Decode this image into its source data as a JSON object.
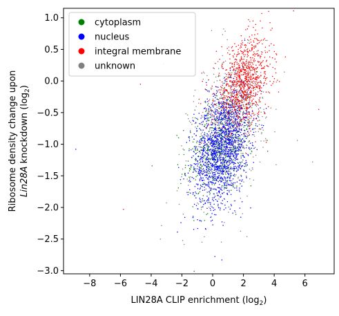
{
  "chart_data": {
    "type": "scatter",
    "title": "",
    "xlabel": "LIN28A CLIP enrichment (log",
    "xlabel_sub": "2",
    "xlabel_end": ")",
    "ylabel_line1": "Ribosome density change upon",
    "ylabel_line2_italic": "Lin28A",
    "ylabel_line2_rest": " knockdown (log",
    "ylabel_line2_sub": "2",
    "ylabel_line2_end": ")",
    "xlim": [
      -9.7,
      7.9
    ],
    "ylim": [
      -3.05,
      1.15
    ],
    "xticks": [
      -8,
      -6,
      -4,
      -2,
      0,
      2,
      4,
      6
    ],
    "xtick_labels": [
      "−8",
      "−6",
      "−4",
      "−2",
      "0",
      "2",
      "4",
      "6"
    ],
    "yticks": [
      -3.0,
      -2.5,
      -2.0,
      -1.5,
      -1.0,
      -0.5,
      0.0,
      0.5,
      1.0
    ],
    "ytick_labels": [
      "−3.0",
      "−2.5",
      "−2.0",
      "−1.5",
      "−1.0",
      "−0.5",
      "0.0",
      "0.5",
      "1.0"
    ],
    "grid": false,
    "legend_position": "top-left",
    "series": [
      {
        "name": "cytoplasm",
        "color": "#008000",
        "count": 450,
        "center": [
          0.5,
          -1.0
        ],
        "spread": [
          1.1,
          0.45
        ],
        "corr": 0.3
      },
      {
        "name": "nucleus",
        "color": "#0000ff",
        "count": 1700,
        "center": [
          0.6,
          -1.05
        ],
        "spread": [
          0.9,
          0.45
        ],
        "corr": 0.3
      },
      {
        "name": "integral membrane",
        "color": "#ff0000",
        "count": 1000,
        "center": [
          2.0,
          -0.05
        ],
        "spread": [
          0.9,
          0.35
        ],
        "corr": 0.35
      },
      {
        "name": "unknown",
        "color": "#808080",
        "count": 700,
        "center": [
          1.0,
          -0.7
        ],
        "spread": [
          1.2,
          0.6
        ],
        "corr": 0.35
      }
    ],
    "outliers": [
      {
        "series": "nucleus",
        "x": -8.9,
        "y": -1.08
      },
      {
        "series": "integral membrane",
        "x": 6.9,
        "y": -0.45
      },
      {
        "series": "unknown",
        "x": 6.5,
        "y": -1.28
      },
      {
        "series": "integral membrane",
        "x": -5.8,
        "y": -2.03
      },
      {
        "series": "unknown",
        "x": -3.4,
        "y": -2.5
      },
      {
        "series": "unknown",
        "x": -3.2,
        "y": 0.27
      },
      {
        "series": "unknown",
        "x": 5.5,
        "y": -0.94
      },
      {
        "series": "integral membrane",
        "x": -4.7,
        "y": -0.05
      },
      {
        "series": "integral membrane",
        "x": 3.1,
        "y": 0.95
      },
      {
        "series": "nucleus",
        "x": 0.6,
        "y": -2.83
      }
    ]
  }
}
